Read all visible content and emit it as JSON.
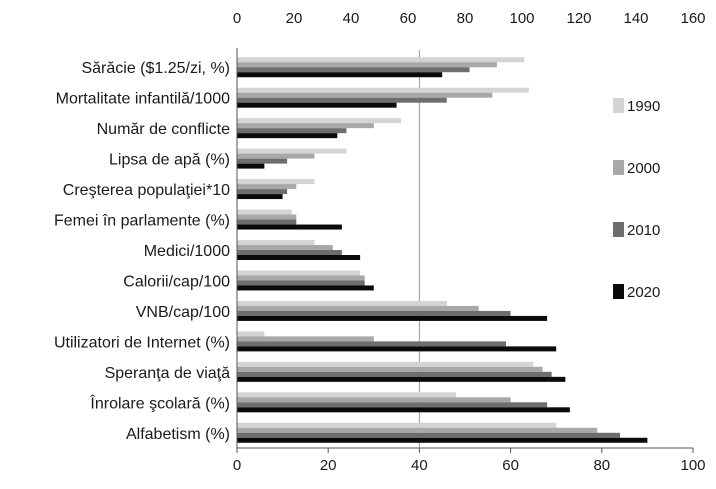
{
  "chart_data": {
    "type": "bar",
    "orientation": "horizontal",
    "title": "",
    "xlabel": "",
    "ylabel": "",
    "xlim": [
      0,
      100
    ],
    "xticks": [
      0,
      20,
      40,
      60,
      80,
      100
    ],
    "secondary_axis": {
      "position": "top",
      "xlim": [
        0,
        160
      ],
      "xticks": [
        0,
        20,
        40,
        60,
        80,
        100,
        120,
        140,
        160
      ]
    },
    "grid": "single vertical reference line at 40",
    "legend_position": "right",
    "categories": [
      "Sărăcie ($1.25/zi, %)",
      "Mortalitate infantilă/1000",
      "Număr de conflicte",
      "Lipsa de apă (%)",
      "Creşterea populaţiei*10",
      "Femei în parlamente (%)",
      "Medici/1000",
      "Calorii/cap/100",
      "VNB/cap/100",
      "Utilizatori de Internet (%)",
      "Speranţa de viaţă",
      "Înrolare şcolară (%)",
      "Alfabetism (%)"
    ],
    "series": [
      {
        "name": "1990",
        "color": "#d4d4d4",
        "values": [
          63,
          64,
          36,
          24,
          17,
          12,
          17,
          27,
          46,
          6,
          65,
          48,
          70
        ]
      },
      {
        "name": "2000",
        "color": "#a8a8a8",
        "values": [
          57,
          56,
          30,
          17,
          13,
          13,
          21,
          28,
          53,
          30,
          67,
          60,
          79
        ]
      },
      {
        "name": "2010",
        "color": "#6e6e6e",
        "values": [
          51,
          46,
          24,
          11,
          11,
          13,
          23,
          28,
          60,
          59,
          69,
          68,
          84
        ]
      },
      {
        "name": "2020",
        "color": "#0a0a0a",
        "values": [
          45,
          35,
          22,
          6,
          10,
          23,
          27,
          30,
          68,
          70,
          72,
          73,
          90
        ]
      }
    ]
  }
}
